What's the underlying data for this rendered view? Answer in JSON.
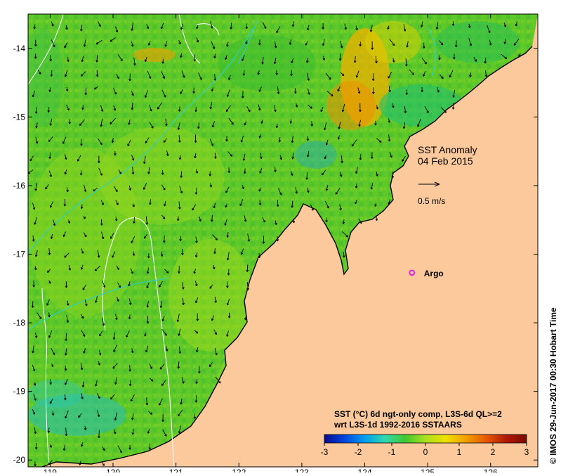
{
  "map": {
    "title_line1": "SST Anomaly",
    "title_line2": "04 Feb 2015",
    "scale_arrow_label": "0.5 m/s",
    "argo_label": "Argo",
    "x_ticks": [
      "119",
      "120",
      "121",
      "122",
      "123",
      "124",
      "125",
      "126"
    ],
    "y_ticks": [
      "-14",
      "-15",
      "-16",
      "-17",
      "-18",
      "-19",
      "-20"
    ],
    "lon_range": [
      118.65,
      126.75
    ],
    "lat_range": [
      -20.1,
      -13.5
    ],
    "argo_position": [
      124.75,
      -17.27
    ],
    "colors": {
      "land": "#fbc99b",
      "ocean_base": "#5ec828",
      "coast": "#000000",
      "contour_white": "#ffffff",
      "contour_cyan": "#26d0d8",
      "argo": "#e020e0"
    }
  },
  "colorbar": {
    "caption_line1": "SST (°C) 6d ngt-only comp, L3S-6d QL>=2",
    "caption_line2": "wrt L3S-1d 1992-2016 SSTAARS",
    "ticks": [
      "-3",
      "-2",
      "-1",
      "0",
      "1",
      "2",
      "3"
    ],
    "range": [
      -3,
      3
    ],
    "colors": [
      "#0a0a8c",
      "#0046e0",
      "#00a0f0",
      "#30d8b0",
      "#40c830",
      "#a8e020",
      "#f0e000",
      "#f0a000",
      "#e85a00",
      "#b01800",
      "#7a0a00"
    ]
  },
  "credit": "© IMOS 29-Jun-2017 00:30 Hobart Time"
}
